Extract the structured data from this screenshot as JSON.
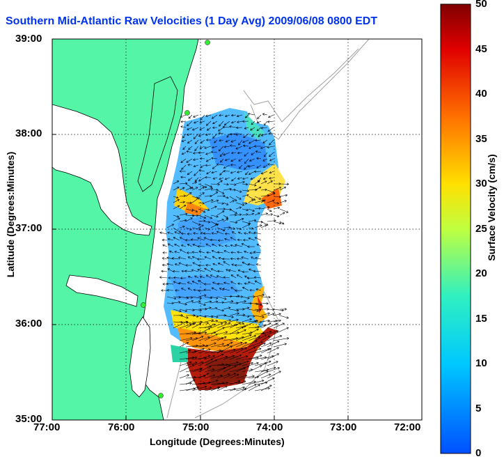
{
  "title": "Southern Mid-Atlantic Raw Velocities (1 Day Avg) 2009/06/08 0800 EDT",
  "xlabel": "Longitude (Degrees:Minutes)",
  "ylabel": "Latitude (Degrees:Minutes)",
  "colorbar": {
    "label": "Surface Velocity (cm/s)",
    "min": 0,
    "max": 50,
    "ticks": [
      "0",
      "5",
      "10",
      "15",
      "20",
      "25",
      "30",
      "35",
      "40",
      "45",
      "50"
    ]
  },
  "axes": {
    "xticks": [
      "77:00",
      "76:00",
      "75:00",
      "74:00",
      "73:00",
      "72:00"
    ],
    "yticks": [
      "39:00",
      "38:00",
      "37:00",
      "36:00",
      "35:00"
    ],
    "xlim": [
      "77:00",
      "72:00"
    ],
    "ylim": [
      "35:00",
      "39:00"
    ],
    "grid": "dotted"
  },
  "colors": {
    "land": "#55f5a8",
    "coast_lines": "#000000",
    "bathymetry": "#a0a0a0",
    "title": "#0033ee"
  },
  "stations": [
    "station-1",
    "station-2",
    "station-3",
    "station-4"
  ],
  "icons": [
    "station-marker-icon",
    "velocity-arrow-icon"
  ]
}
